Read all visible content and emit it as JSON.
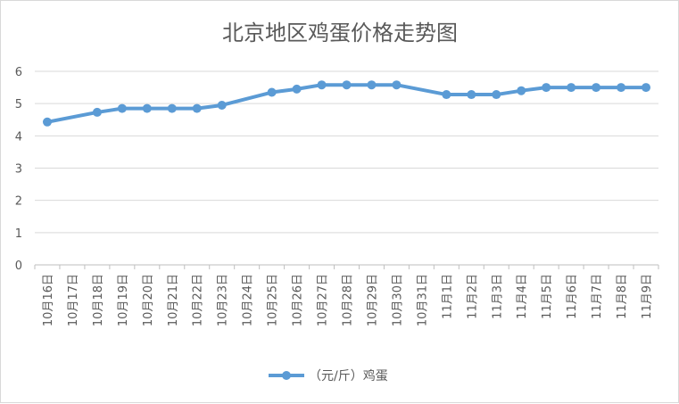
{
  "chart_data": {
    "type": "line",
    "title": "北京地区鸡蛋价格走势图",
    "categories": [
      "10月16日",
      "10月17日",
      "10月18日",
      "10月19日",
      "10月20日",
      "10月21日",
      "10月22日",
      "10月23日",
      "10月24日",
      "10月25日",
      "10月26日",
      "10月27日",
      "10月28日",
      "10月29日",
      "10月30日",
      "10月31日",
      "11月1日",
      "11月2日",
      "11月3日",
      "11月4日",
      "11月5日",
      "11月6日",
      "11月7日",
      "11月8日",
      "11月9日"
    ],
    "series": [
      {
        "name": "（元/斤）鸡蛋",
        "color": "#5b9bd5",
        "x": [
          "10月16日",
          "10月18日",
          "10月19日",
          "10月20日",
          "10月21日",
          "10月22日",
          "10月23日",
          "10月25日",
          "10月26日",
          "10月27日",
          "10月28日",
          "10月29日",
          "10月30日",
          "11月1日",
          "11月2日",
          "11月3日",
          "11月4日",
          "11月5日",
          "11月6日",
          "11月7日",
          "11月8日",
          "11月9日"
        ],
        "values": [
          4.43,
          4.73,
          4.85,
          4.85,
          4.85,
          4.85,
          4.95,
          5.35,
          5.45,
          5.58,
          5.58,
          5.58,
          5.58,
          5.28,
          5.28,
          5.28,
          5.4,
          5.5,
          5.5,
          5.5,
          5.5,
          5.5
        ]
      }
    ],
    "yticks": [
      "0",
      "1",
      "2",
      "3",
      "4",
      "5",
      "6"
    ],
    "ylim": [
      0,
      6
    ],
    "grid": true,
    "legend_position": "bottom"
  }
}
